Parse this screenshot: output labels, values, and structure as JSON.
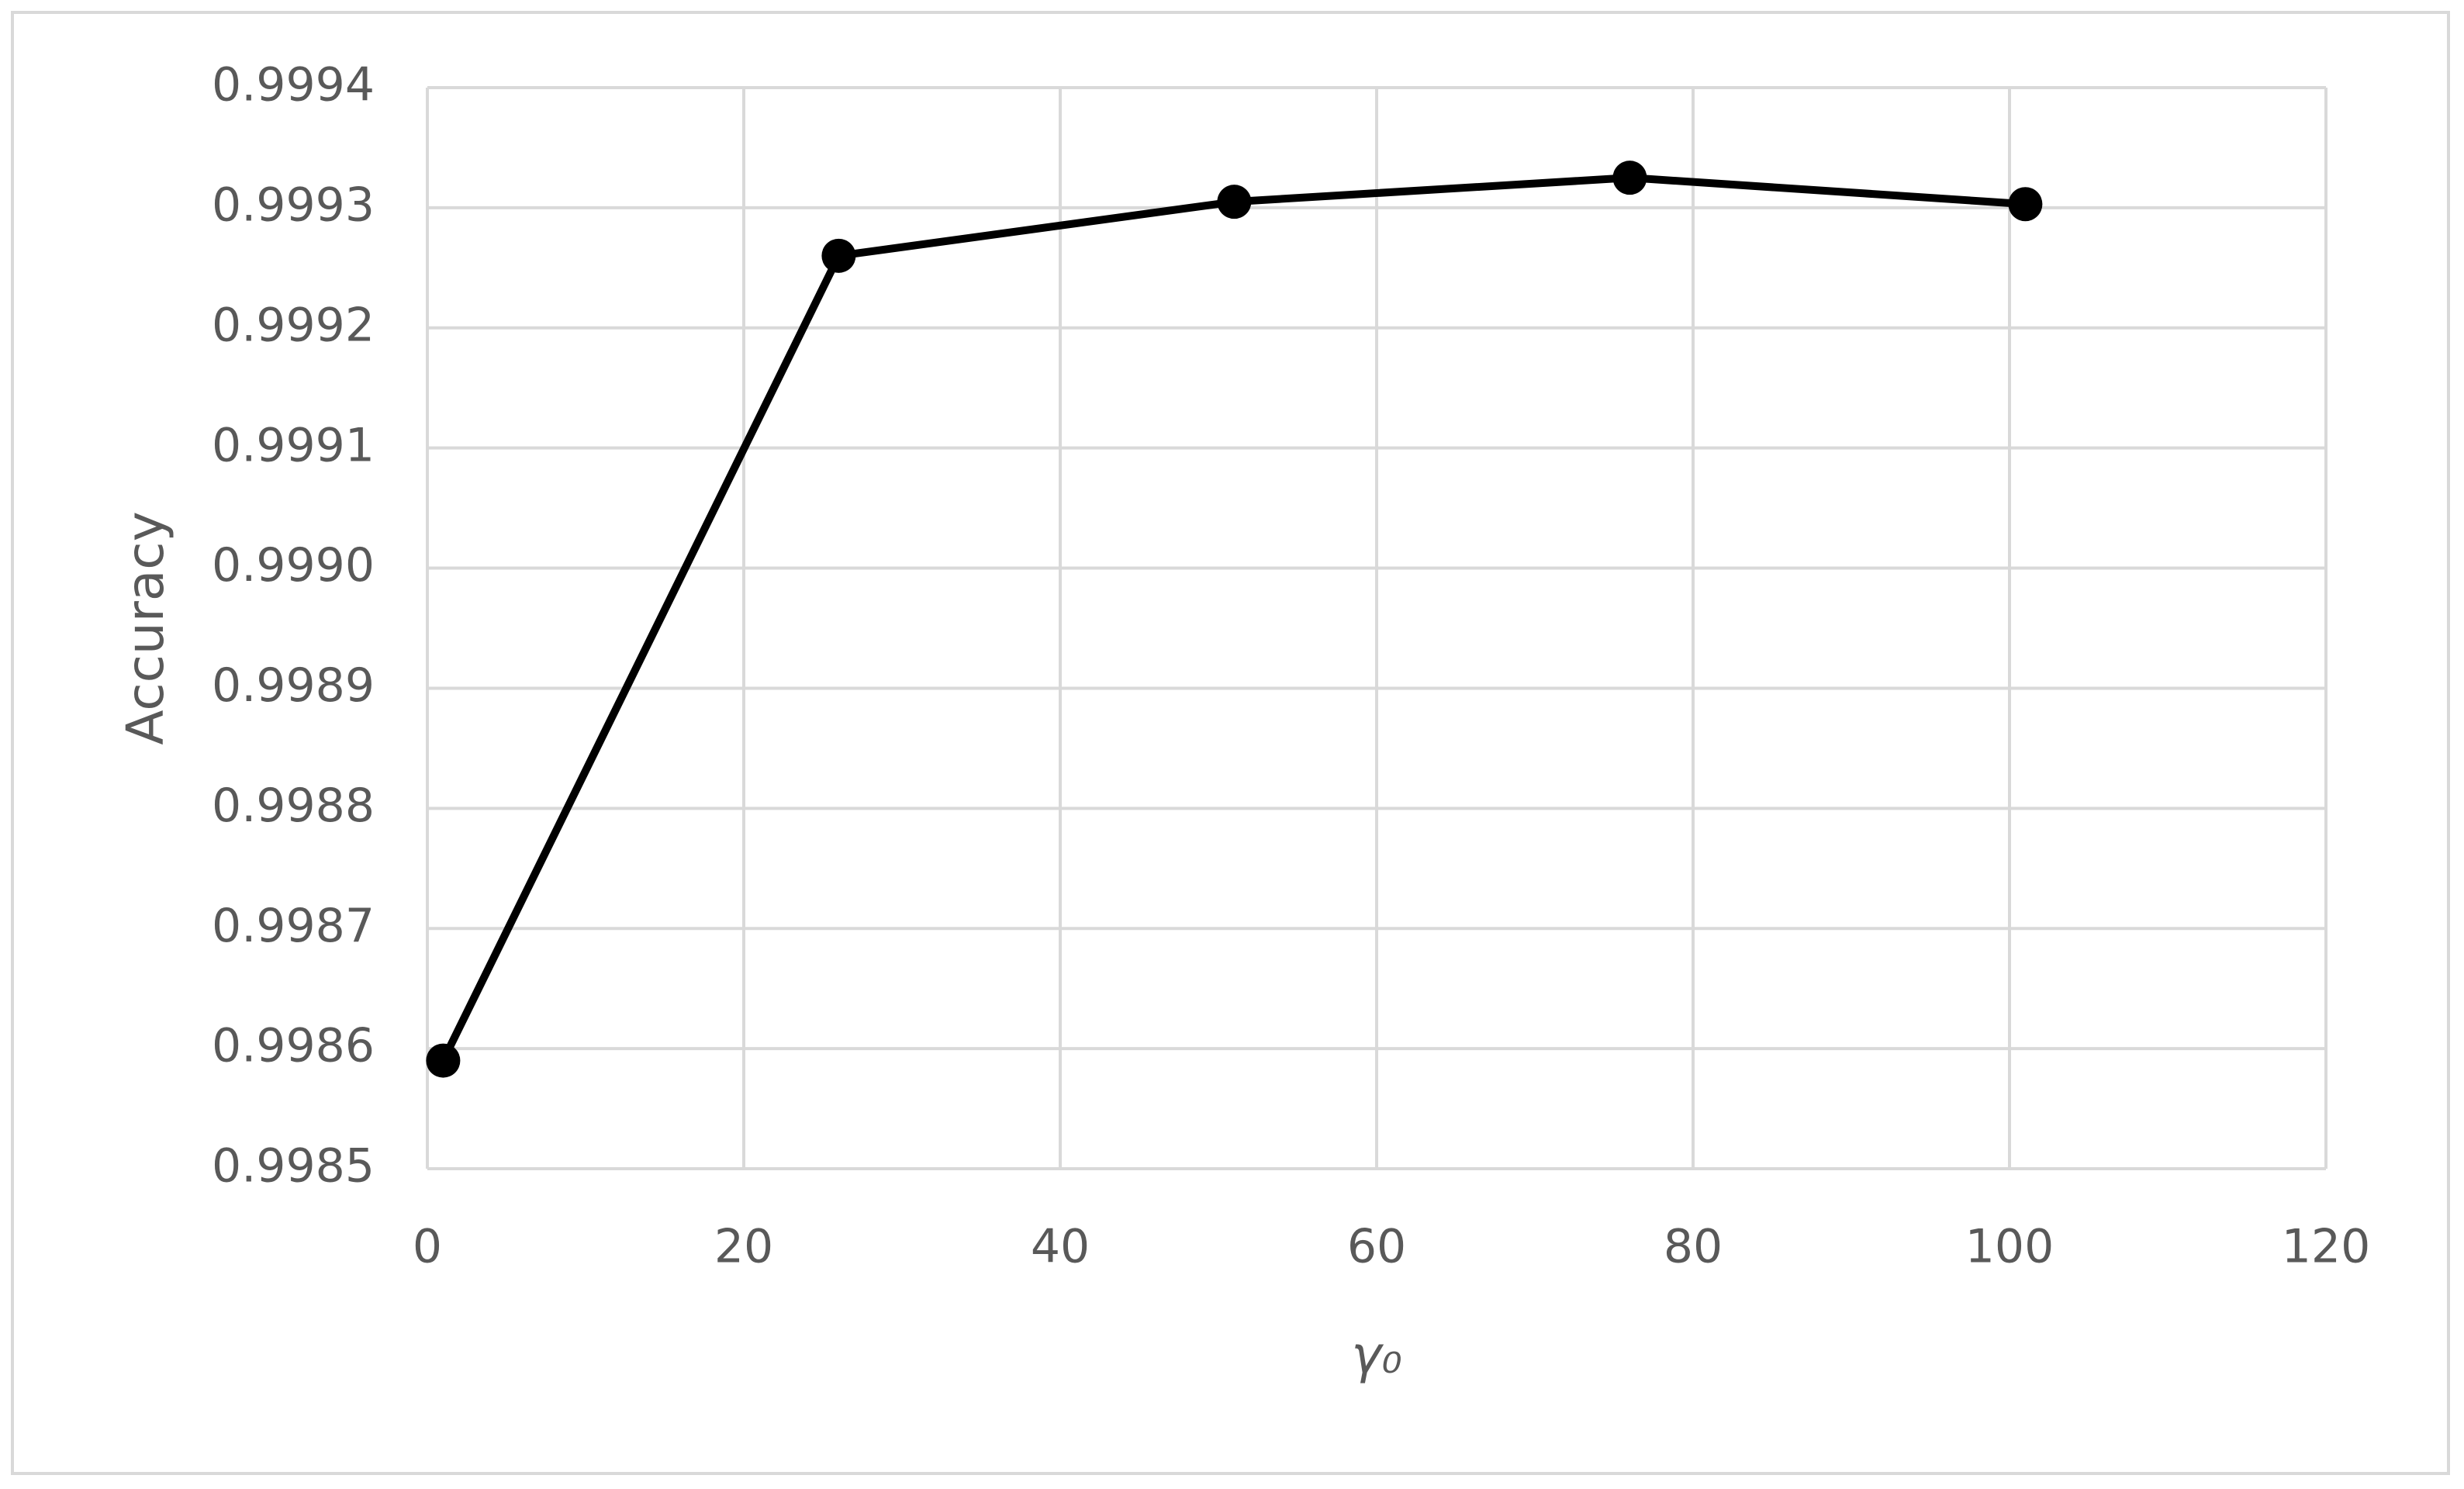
{
  "chart_data": {
    "type": "line",
    "x_label": "γ₀",
    "y_label": "Accuracy",
    "x": [
      1,
      26,
      51,
      76,
      101
    ],
    "series": [
      {
        "name": "Accuracy",
        "color": "#000000",
        "values": [
          0.99859,
          0.99926,
          0.999305,
          0.999325,
          0.999303
        ]
      }
    ],
    "xlim": [
      0,
      120
    ],
    "xticks": [
      0,
      20,
      40,
      60,
      80,
      100,
      120
    ],
    "ylim": [
      0.9985,
      0.9994
    ],
    "yticks": [
      0.9985,
      0.9986,
      0.9987,
      0.9988,
      0.9989,
      {
        "value": 0.999,
        "label": "0.9990"
      },
      0.9991,
      0.9992,
      0.9993,
      0.9994
    ],
    "grid": true,
    "markers": true
  }
}
